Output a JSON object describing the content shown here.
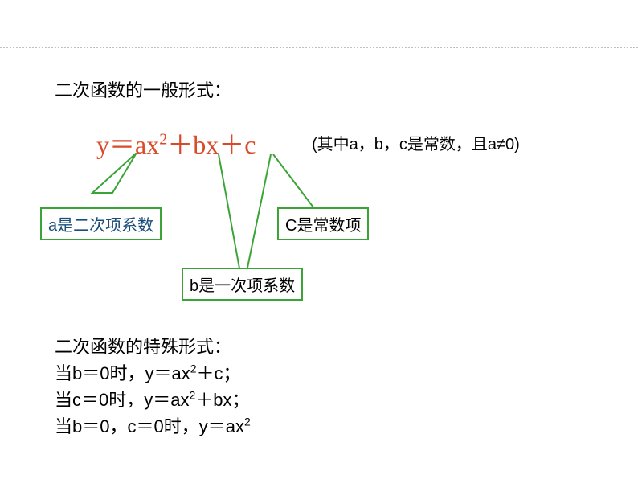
{
  "title": "二次函数的一般形式：",
  "formula_html": "y＝ax<sup>2</sup>＋bx＋c",
  "condition": "(其中a，b，c是常数，且a≠0)",
  "callout_a": "a是二次项系数",
  "callout_c": "C是常数项",
  "callout_b": "b是一次项系数",
  "special_title": "二次函数的特殊形式：",
  "special_b0": "当b＝0时，y＝ax<sup>2</sup>＋c；",
  "special_c0": "当c＝0时，y＝ax<sup>2</sup>＋bx；",
  "special_bc0": "当b＝0，c＝0时，y＝ax<sup>2</sup>",
  "colors": {
    "formula": "#d94a2a",
    "box_border": "#3aa536",
    "text_blue": "#1a4d7a",
    "connector": "#3aa536",
    "dotted": "#c0c0c0"
  },
  "fonts": {
    "body_size": 22,
    "formula_size": 32,
    "condition_size": 20,
    "callout_size": 20
  }
}
